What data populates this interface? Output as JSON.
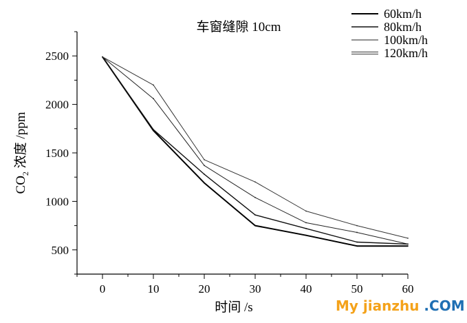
{
  "chart_data": {
    "type": "line",
    "title": "车窗缝隙 10cm",
    "xlabel": "时间 /s",
    "ylabel_main": "CO",
    "ylabel_sub": "2",
    "ylabel_rest": " 浓度 /ppm",
    "xlim": [
      -5,
      60
    ],
    "ylim": [
      250,
      2750
    ],
    "xticks": [
      0,
      10,
      20,
      30,
      40,
      50,
      60
    ],
    "yticks": [
      500,
      1000,
      1500,
      2000,
      2500
    ],
    "legend_position": "top-right",
    "series": [
      {
        "name": "60km/h",
        "x": [
          0,
          10,
          20,
          30,
          40,
          50,
          60
        ],
        "y": [
          2490,
          1730,
          1190,
          750,
          650,
          540,
          540
        ],
        "color": "#000000"
      },
      {
        "name": "80km/h",
        "x": [
          0,
          10,
          20,
          30,
          40,
          50,
          60
        ],
        "y": [
          2490,
          1740,
          1280,
          860,
          720,
          580,
          560
        ],
        "color": "#111111"
      },
      {
        "name": "100km/h",
        "x": [
          0,
          10,
          20,
          30,
          40,
          50,
          60
        ],
        "y": [
          2490,
          2060,
          1370,
          1040,
          780,
          680,
          560
        ],
        "color": "#222222"
      },
      {
        "name": "120km/h",
        "x": [
          0,
          10,
          20,
          30,
          40,
          50,
          60
        ],
        "y": [
          2490,
          2200,
          1430,
          1200,
          900,
          750,
          620
        ],
        "color": "#333333"
      }
    ]
  },
  "watermark": {
    "part1": "My jianzhu",
    "part2": " .COM"
  }
}
